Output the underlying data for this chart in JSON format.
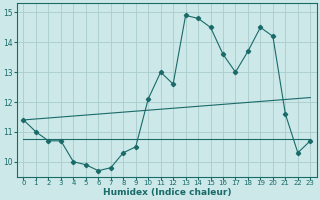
{
  "xlabel": "Humidex (Indice chaleur)",
  "background_color": "#cce8e8",
  "grid_color": "#aacccc",
  "line_color": "#1a6a6a",
  "spine_color": "#1a6a6a",
  "xlim": [
    -0.5,
    23.5
  ],
  "ylim": [
    9.5,
    15.3
  ],
  "yticks": [
    10,
    11,
    12,
    13,
    14,
    15
  ],
  "xticks": [
    0,
    1,
    2,
    3,
    4,
    5,
    6,
    7,
    8,
    9,
    10,
    11,
    12,
    13,
    14,
    15,
    16,
    17,
    18,
    19,
    20,
    21,
    22,
    23
  ],
  "series1_x": [
    0,
    1,
    2,
    3,
    4,
    5,
    6,
    7,
    8,
    9,
    10,
    11,
    12,
    13,
    14,
    15,
    16,
    17,
    18,
    19,
    20,
    21,
    22,
    23
  ],
  "series1_y": [
    11.4,
    11.0,
    10.7,
    10.7,
    10.0,
    9.9,
    9.7,
    9.8,
    10.3,
    10.5,
    12.1,
    13.0,
    12.6,
    14.9,
    14.8,
    14.5,
    13.6,
    13.0,
    13.7,
    14.5,
    14.2,
    11.6,
    10.3,
    10.7
  ],
  "series2_x": [
    0,
    23
  ],
  "series2_y": [
    10.75,
    10.75
  ],
  "series3_x": [
    0,
    23
  ],
  "series3_y": [
    11.4,
    12.15
  ]
}
